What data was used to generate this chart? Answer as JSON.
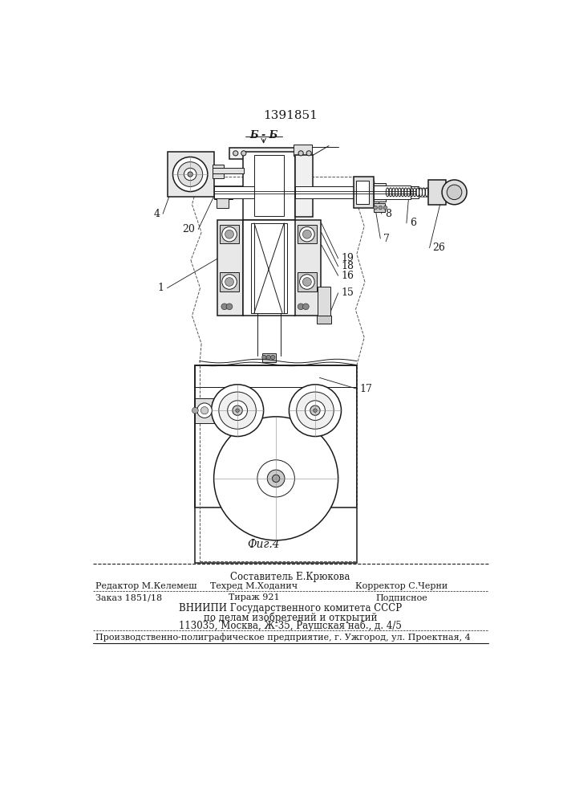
{
  "patent_number": "1391851",
  "section_label": "Б - Б",
  "figure_label": "Фиг.4",
  "composer": "Составитель Е.Крюкова",
  "editor": "Редактор М.Келемеш",
  "techred": "Техред М.Ходанич",
  "corrector": "Корректор С.Черни",
  "order": "Заказ 1851/18",
  "tirazh": "Тираж 921",
  "podpisnoe": "Подписное",
  "vniiipi_line1": "ВНИИПИ Государственного комитета СССР",
  "vniiipi_line2": "по делам изобретений и открытий",
  "vniiipi_line3": "113035, Москва, Ж-35, Раушская наб., д. 4/5",
  "factory_line": "Производственно-полиграфическое предприятие, г. Ужгород, ул. Проектная, 4",
  "bg_color": "#ffffff",
  "drawing_color": "#1a1a1a",
  "hatch_color": "#555555"
}
